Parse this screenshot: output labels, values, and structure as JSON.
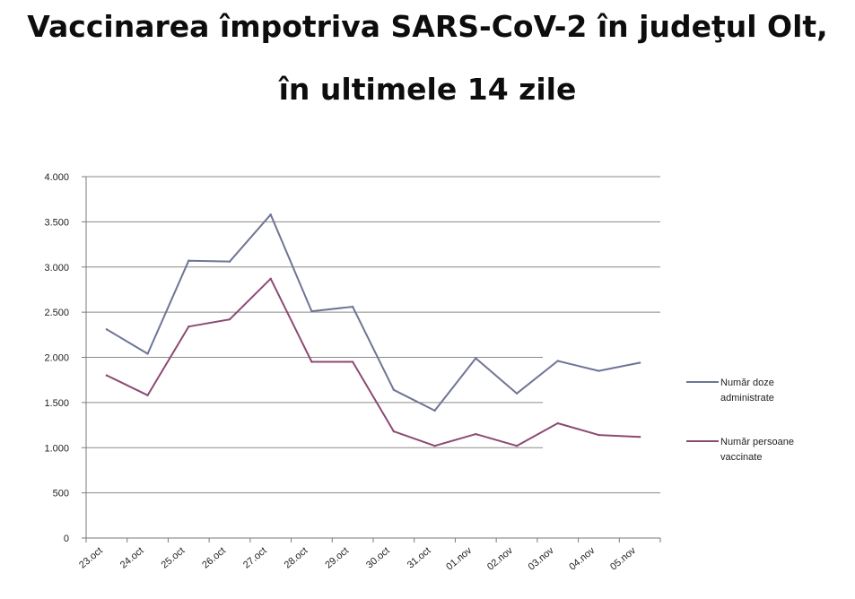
{
  "chart_data": {
    "type": "line",
    "title_line1": "Vaccinarea împotriva SARS-CoV-2 în judeţul Olt,",
    "title_line2": "în ultimele 14 zile",
    "xlabel": "",
    "ylabel": "",
    "ylim": [
      0,
      4000
    ],
    "y_ticks": [
      0,
      500,
      1000,
      1500,
      2000,
      2500,
      3000,
      3500,
      4000
    ],
    "y_tick_labels": [
      "0",
      "500",
      "1.000",
      "1.500",
      "2.000",
      "2.500",
      "3.000",
      "3.500",
      "4.000"
    ],
    "categories": [
      "23.oct",
      "24.oct",
      "25.oct",
      "26.oct",
      "27.oct",
      "28.oct",
      "29.oct",
      "30.oct",
      "31.oct",
      "01.nov",
      "02.nov",
      "03.nov",
      "04.nov",
      "05.nov"
    ],
    "grid": true,
    "legend_position": "right",
    "series": [
      {
        "name_line1": "Număr doze",
        "name_line2": "administrate",
        "color": "#6e7596",
        "values": [
          2310,
          2040,
          3070,
          3060,
          3580,
          2510,
          2560,
          1640,
          1410,
          1990,
          1600,
          1960,
          1850,
          1940
        ]
      },
      {
        "name_line1": "Număr persoane",
        "name_line2": "vaccinate",
        "color": "#8c4a73",
        "values": [
          1800,
          1580,
          2340,
          2420,
          2870,
          1950,
          1950,
          1180,
          1020,
          1150,
          1020,
          1270,
          1140,
          1120
        ]
      }
    ]
  }
}
